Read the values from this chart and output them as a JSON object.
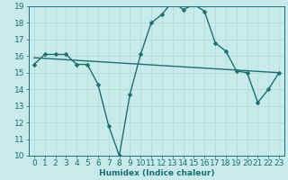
{
  "xlabel": "Humidex (Indice chaleur)",
  "ylabel": "",
  "background_color": "#c8eaea",
  "line_color": "#1a7070",
  "grid_color": "#b0d8d8",
  "xlim": [
    -0.5,
    23.5
  ],
  "ylim": [
    10,
    19
  ],
  "yticks": [
    10,
    11,
    12,
    13,
    14,
    15,
    16,
    17,
    18,
    19
  ],
  "xticks": [
    0,
    1,
    2,
    3,
    4,
    5,
    6,
    7,
    8,
    9,
    10,
    11,
    12,
    13,
    14,
    15,
    16,
    17,
    18,
    19,
    20,
    21,
    22,
    23
  ],
  "main_x": [
    0,
    1,
    2,
    3,
    4,
    5,
    6,
    7,
    8,
    9,
    10,
    11,
    12,
    13,
    14,
    15,
    16,
    17,
    18,
    19,
    20,
    21,
    22,
    23
  ],
  "main_y": [
    15.5,
    16.1,
    16.1,
    16.1,
    15.5,
    15.5,
    14.3,
    11.8,
    10.0,
    13.7,
    16.1,
    18.0,
    18.5,
    19.3,
    18.8,
    19.1,
    18.7,
    16.8,
    16.3,
    15.1,
    15.0,
    13.2,
    14.0,
    15.0
  ],
  "trend_x": [
    0,
    23
  ],
  "trend_y": [
    15.9,
    15.0
  ],
  "marker_size": 2.5,
  "line_width": 1.0,
  "font_size": 6.5
}
